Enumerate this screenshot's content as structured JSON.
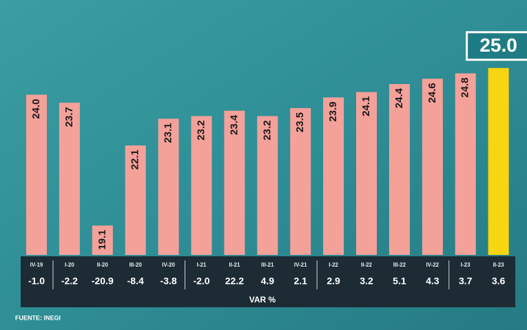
{
  "chart_data": {
    "type": "bar",
    "categories": [
      "IV-19",
      "I-20",
      "II-20",
      "III-20",
      "IV-20",
      "I-21",
      "II-21",
      "III-21",
      "IV-21",
      "I-22",
      "II-22",
      "III-22",
      "IV-22",
      "I-23",
      "II-23"
    ],
    "values": [
      24.0,
      23.7,
      19.1,
      22.1,
      23.1,
      23.2,
      23.4,
      23.2,
      23.5,
      23.9,
      24.1,
      24.4,
      24.6,
      24.8,
      25.0
    ],
    "value_labels": [
      "24.0",
      "23.7",
      "19.1",
      "22.1",
      "23.1",
      "23.2",
      "23.4",
      "23.2",
      "23.5",
      "23.9",
      "24.1",
      "24.4",
      "24.6",
      "24.8",
      "25.0"
    ],
    "colors": [
      "#f4a19a",
      "#f4a19a",
      "#f4a19a",
      "#f4a19a",
      "#f4a19a",
      "#f4a19a",
      "#f4a19a",
      "#f4a19a",
      "#f4a19a",
      "#f4a19a",
      "#f4a19a",
      "#f4a19a",
      "#f4a19a",
      "#f4a19a",
      "#f7d511"
    ],
    "ylim": [
      18,
      25.2
    ],
    "var_label": "VAR %",
    "var_values": [
      -1.0,
      -2.2,
      -20.9,
      -8.4,
      -3.8,
      -2.0,
      22.2,
      4.9,
      2.1,
      2.9,
      3.2,
      5.1,
      4.3,
      3.7,
      3.6
    ],
    "var_value_labels": [
      "-1.0",
      "-2.2",
      "-20.9",
      "-8.4",
      "-3.8",
      "-2.0",
      "22.2",
      "4.9",
      "2.1",
      "2.9",
      "3.2",
      "5.1",
      "4.3",
      "3.7",
      "3.6"
    ],
    "source": "FUENTE: INEGI"
  }
}
